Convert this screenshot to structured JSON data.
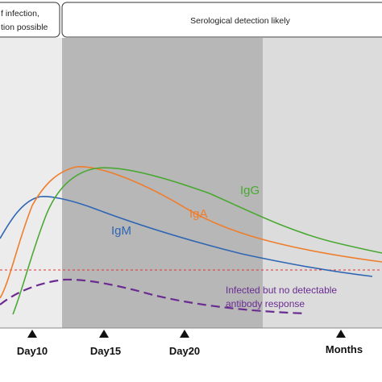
{
  "header": {
    "left_bracket_lines": [
      "f infection,",
      "tion possible"
    ],
    "right_bracket_label": "Serological detection likely"
  },
  "curves": {
    "igg": {
      "label": "IgG",
      "color": "#4aa832"
    },
    "iga": {
      "label": "IgA",
      "color": "#ef7d2b"
    },
    "igm": {
      "label": "IgM",
      "color": "#2f66b3"
    },
    "no_response": {
      "label_lines": [
        "Infected but no detectable",
        "antibody response"
      ],
      "color": "#6a2c91"
    }
  },
  "threshold": {
    "color": "#e53030"
  },
  "timeline": {
    "markers": [
      {
        "label": "Day10"
      },
      {
        "label": "Day15"
      },
      {
        "label": "Day20"
      },
      {
        "label": "Months"
      }
    ]
  },
  "colors": {
    "left_band": "#ececec",
    "middle_band": "#b7b7b7",
    "right_band": "#dcdcdc"
  }
}
